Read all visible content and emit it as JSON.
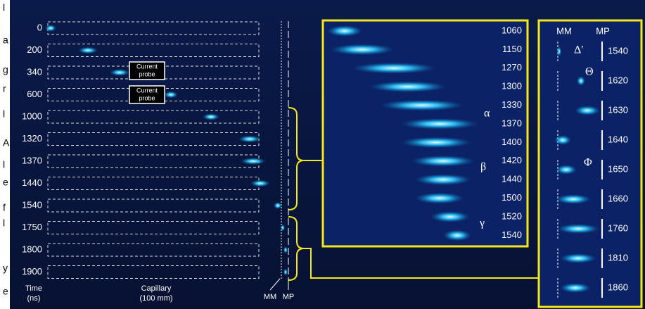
{
  "edge_letters": [
    "l",
    "a",
    "g",
    "r",
    "l",
    "A",
    "l",
    "e",
    "f",
    "l",
    "y",
    "e"
  ],
  "left_panel": {
    "times": [
      "0",
      "200",
      "340",
      "600",
      "1000",
      "1320",
      "1370",
      "1440",
      "1540",
      "1750",
      "1800",
      "1900"
    ],
    "time_label": [
      "Time",
      "(ns)"
    ],
    "capillary_label": [
      "Capillary",
      "(100 mm)"
    ],
    "mm_label": "MM",
    "mp_label": "MP",
    "probe_labels": [
      [
        "Current",
        "probe"
      ],
      [
        "Current",
        "probe"
      ]
    ]
  },
  "middle_panel": {
    "times": [
      "1060",
      "1150",
      "1270",
      "1300",
      "1330",
      "1370",
      "1400",
      "1420",
      "1440",
      "1500",
      "1520",
      "1540"
    ],
    "greek": [
      "α",
      "β",
      "γ"
    ]
  },
  "right_panel": {
    "headers": [
      "MM",
      "MP"
    ],
    "times": [
      "1540",
      "1620",
      "1630",
      "1640",
      "1650",
      "1660",
      "1760",
      "1810",
      "1860"
    ],
    "greek": [
      "Δ′",
      "Θ",
      "Φ"
    ]
  }
}
